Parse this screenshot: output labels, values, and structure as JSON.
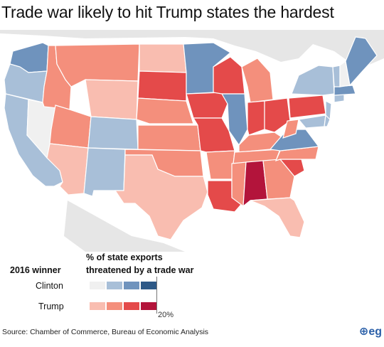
{
  "title": "Trade war likely to hit Trump states the hardest",
  "legend": {
    "winner_heading": "2016 winner",
    "measure_heading_line1": "% of state exports",
    "measure_heading_line2": "threatened by a trade war",
    "rows": [
      {
        "label": "Clinton",
        "colors": [
          "#f0f0f0",
          "#a8bfd8",
          "#6f93bd",
          "#2e5987"
        ]
      },
      {
        "label": "Trump",
        "colors": [
          "#f9bdb0",
          "#f48f7c",
          "#e44a4a",
          "#b3143b"
        ]
      }
    ],
    "scale_tick": "20%"
  },
  "source": "Source: Chamber of Commerce, Bureau of Economic Analysis",
  "logo": "eg",
  "colors": {
    "clinton_light": "#f0f0f0",
    "clinton_mid": "#a8bfd8",
    "clinton_strong": "#6f93bd",
    "clinton_dark": "#2e5987",
    "trump_light": "#f9bdb0",
    "trump_mid": "#f48f7c",
    "trump_strong": "#e44a4a",
    "trump_dark": "#b3143b",
    "background_land": "#e6e6e6"
  }
}
